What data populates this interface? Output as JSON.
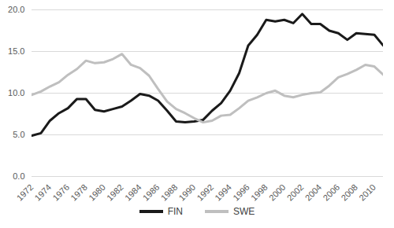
{
  "chart_data": {
    "type": "line",
    "x": [
      1972,
      1973,
      1974,
      1975,
      1976,
      1977,
      1978,
      1979,
      1980,
      1981,
      1982,
      1983,
      1984,
      1985,
      1986,
      1987,
      1988,
      1989,
      1990,
      1991,
      1992,
      1993,
      1994,
      1995,
      1996,
      1997,
      1998,
      1999,
      2000,
      2001,
      2002,
      2003,
      2004,
      2005,
      2006,
      2007,
      2008,
      2009,
      2010,
      2011
    ],
    "series": [
      {
        "name": "FIN",
        "color": "#1a1a1a",
        "values": [
          4.9,
          5.2,
          6.7,
          7.6,
          8.2,
          9.3,
          9.3,
          8.0,
          7.8,
          8.1,
          8.4,
          9.1,
          9.9,
          9.7,
          9.1,
          7.9,
          6.6,
          6.5,
          6.6,
          6.8,
          7.9,
          8.8,
          10.3,
          12.4,
          15.7,
          17.0,
          18.8,
          18.6,
          18.8,
          18.4,
          19.5,
          18.3,
          18.3,
          17.5,
          17.2,
          16.4,
          17.2,
          17.1,
          17.0,
          15.7
        ]
      },
      {
        "name": "SWE",
        "color": "#bfbfbf",
        "values": [
          9.8,
          10.2,
          10.8,
          11.3,
          12.2,
          12.9,
          13.9,
          13.6,
          13.7,
          14.1,
          14.7,
          13.4,
          13.0,
          12.1,
          10.5,
          9.0,
          8.1,
          7.6,
          7.0,
          6.5,
          6.7,
          7.3,
          7.4,
          8.2,
          9.1,
          9.5,
          10.0,
          10.3,
          9.7,
          9.5,
          9.8,
          10.0,
          10.1,
          10.9,
          11.9,
          12.3,
          12.8,
          13.4,
          13.2,
          12.2
        ]
      }
    ],
    "xlim": [
      1972,
      2011
    ],
    "xticks": [
      1972,
      1974,
      1976,
      1978,
      1980,
      1982,
      1984,
      1986,
      1988,
      1990,
      1992,
      1994,
      1996,
      1998,
      2000,
      2002,
      2004,
      2006,
      2008,
      2010
    ],
    "ylim": [
      0,
      20
    ],
    "yticks": [
      {
        "value": 0,
        "label": "0.0"
      },
      {
        "value": 5,
        "label": "5.0"
      },
      {
        "value": 10,
        "label": "10.0"
      },
      {
        "value": 15,
        "label": "15.0"
      },
      {
        "value": 20,
        "label": "20.0"
      }
    ],
    "grid": true,
    "legend": "bottom"
  }
}
